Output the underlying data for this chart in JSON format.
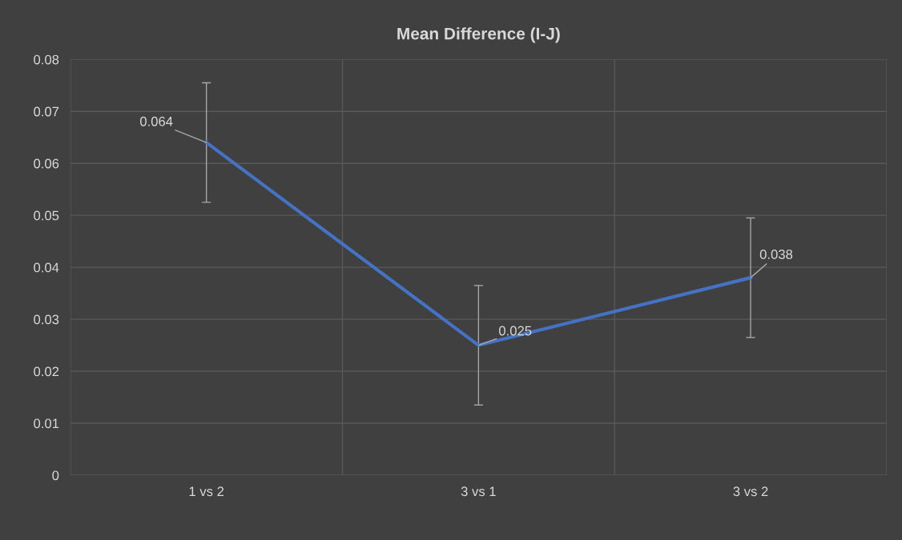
{
  "chart_data": {
    "type": "line",
    "title": "Mean Difference (I-J)",
    "categories": [
      "1 vs 2",
      "3 vs 1",
      "3 vs 2"
    ],
    "series": [
      {
        "color": "#4472c4",
        "values": [
          0.064,
          0.025,
          0.038
        ],
        "errors": [
          0.0115,
          0.0115,
          0.0115
        ]
      }
    ],
    "ylim": [
      0,
      0.08
    ],
    "yticks": [
      {
        "value": 0,
        "label": "0"
      },
      0.01,
      0.02,
      0.03,
      0.04,
      0.05,
      0.06,
      0.07,
      0.08
    ],
    "grid": true,
    "data_labels": true,
    "marker": "none",
    "line_style": "solid"
  }
}
